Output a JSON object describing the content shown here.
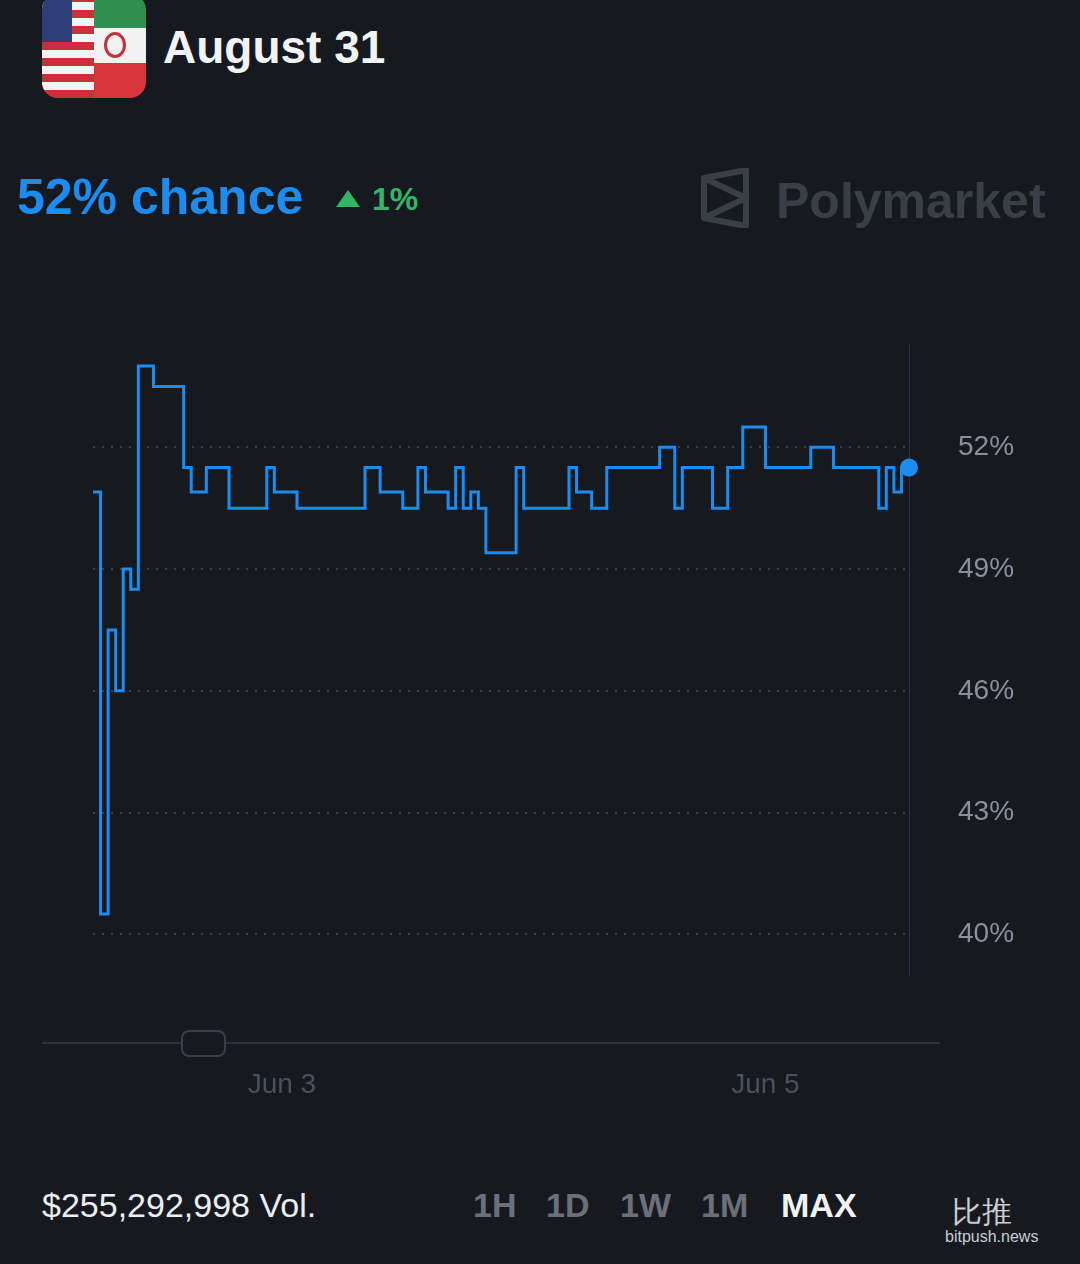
{
  "header": {
    "title": "August 31",
    "chance": "52% chance",
    "change": "1%",
    "brand": "Polymarket"
  },
  "chart_data": {
    "type": "line",
    "categories": [
      null,
      null,
      null,
      null,
      null,
      null,
      null,
      null,
      null,
      null,
      null,
      null,
      null,
      null,
      null,
      null,
      null,
      null,
      null,
      null,
      null,
      null,
      null,
      null,
      null,
      "Jun 3",
      null,
      null,
      null,
      null,
      null,
      null,
      null,
      null,
      null,
      null,
      null,
      null,
      null,
      null,
      null,
      null,
      null,
      null,
      null,
      null,
      null,
      null,
      null,
      null,
      null,
      null,
      null,
      null,
      null,
      null,
      null,
      null,
      null,
      null,
      null,
      null,
      null,
      null,
      null,
      null,
      null,
      null,
      null,
      null,
      null,
      null,
      null,
      null,
      null,
      null,
      null,
      null,
      null,
      null,
      null,
      null,
      null,
      null,
      null,
      null,
      null,
      null,
      null,
      "Jun 5",
      null,
      null,
      null,
      null,
      null,
      null,
      null,
      null,
      null,
      null,
      null,
      null,
      null,
      null,
      null,
      null,
      null,
      null,
      null
    ],
    "values": [
      50.9,
      40.5,
      47.5,
      46.0,
      49.0,
      48.5,
      54.0,
      54.0,
      53.5,
      53.5,
      53.5,
      53.5,
      51.5,
      50.9,
      50.9,
      51.5,
      51.5,
      51.5,
      50.5,
      50.5,
      50.5,
      50.5,
      50.5,
      51.5,
      50.9,
      50.9,
      50.9,
      50.5,
      50.5,
      50.5,
      50.5,
      50.5,
      50.5,
      50.5,
      50.5,
      50.5,
      51.5,
      51.5,
      50.9,
      50.9,
      50.9,
      50.5,
      50.5,
      51.5,
      50.9,
      50.9,
      50.9,
      50.5,
      51.5,
      50.5,
      50.9,
      50.5,
      49.4,
      49.4,
      49.4,
      49.4,
      51.5,
      50.5,
      50.5,
      50.5,
      50.5,
      50.5,
      50.5,
      51.5,
      50.9,
      50.9,
      50.5,
      50.5,
      51.5,
      51.5,
      51.5,
      51.5,
      51.5,
      51.5,
      51.5,
      52.0,
      52.0,
      50.5,
      51.5,
      51.5,
      51.5,
      51.5,
      50.5,
      50.5,
      51.5,
      51.5,
      52.5,
      52.5,
      52.5,
      51.5,
      51.5,
      51.5,
      51.5,
      51.5,
      51.5,
      52.0,
      52.0,
      52.0,
      51.5,
      51.5,
      51.5,
      51.5,
      51.5,
      51.5,
      50.5,
      51.5,
      50.9,
      51.5,
      51.5
    ],
    "color": "#1d8cf0",
    "line_style": "stepped",
    "ylim": [
      39,
      54.5
    ],
    "yticks": [
      {
        "value": 40,
        "label": "40%"
      },
      {
        "value": 43,
        "label": "43%"
      },
      {
        "value": 46,
        "label": "46%"
      },
      {
        "value": 49,
        "label": "49%"
      },
      {
        "value": 52,
        "label": "52%"
      }
    ],
    "grid": true
  },
  "footer": {
    "volume": "$255,292,998 Vol.",
    "ranges": [
      "1H",
      "1D",
      "1W",
      "1M",
      "MAX"
    ],
    "selected": "MAX",
    "watermark": [
      "比推",
      "bitpush.news"
    ]
  }
}
